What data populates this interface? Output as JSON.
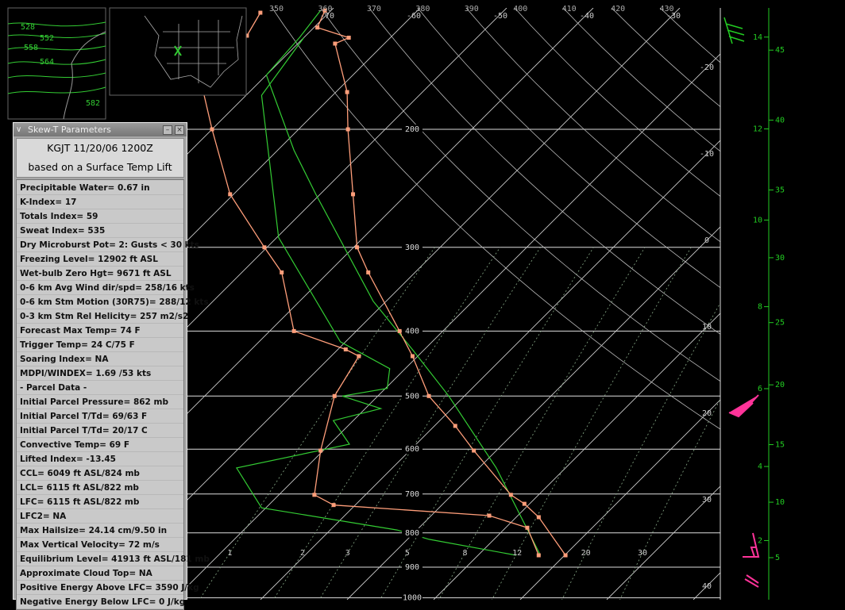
{
  "panel": {
    "title": "Skew-T Parameters",
    "station": "KGJT 11/20/06 1200Z",
    "lift": "based on a Surface Temp Lift",
    "items": [
      "Precipitable Water= 0.67 in",
      "K-Index= 17",
      "Totals Index= 59",
      "Sweat Index= 535",
      "Dry Microburst Pot= 2: Gusts < 30 kts",
      "Freezing Level= 12902 ft ASL",
      "Wet-bulb Zero Hgt= 9671 ft ASL",
      "0-6 km Avg Wind dir/spd= 258/16 kts",
      "0-6 km Stm Motion (30R75)= 288/12 kts",
      "0-3 km Stm Rel Helicity= 257 m2/s2",
      "Forecast Max Temp= 74 F",
      "Trigger Temp= 24 C/75 F",
      "Soaring Index= NA",
      "MDPI/WINDEX= 1.69 /53 kts",
      "- Parcel Data -",
      "Initial Parcel Pressure= 862 mb",
      "Initial Parcel T/Td= 69/63 F",
      "Initial Parcel T/Td= 20/17 C",
      "Convective Temp= 69 F",
      "Lifted Index= -13.45",
      "CCL= 6049 ft ASL/824 mb",
      "LCL= 6115 ft ASL/822 mb",
      "LFC= 6115 ft ASL/822 mb",
      "LFC2= NA",
      "Max Hailsize= 24.14 cm/9.50 in",
      "Max Vertical Velocity= 72 m/s",
      "Equilibrium Level= 41913 ft ASL/181 mb",
      "Approximate Cloud Top= NA",
      "Positive Energy Above LFC= 3590 J/kg",
      "Negative Energy Below LFC= 0 J/kg"
    ]
  },
  "map": {
    "contour_labels": [
      "528",
      "552",
      "558",
      "564",
      "582"
    ]
  },
  "skewt": {
    "isobars": [
      200,
      300,
      400,
      500,
      600,
      700,
      800,
      900,
      1000
    ],
    "isotherms": [
      -70,
      -60,
      -50,
      -40,
      -30,
      -20,
      -10,
      0,
      10,
      20,
      30,
      40
    ],
    "dry_adiabats": [
      350,
      360,
      370,
      380,
      390,
      400,
      410,
      420,
      430
    ],
    "mixing_ratios": [
      1,
      2,
      3,
      5,
      8,
      12,
      20,
      30
    ],
    "height_km": [
      2,
      4,
      6,
      8,
      10,
      12,
      14
    ],
    "height_kft": [
      5,
      10,
      15,
      20,
      25,
      30,
      35,
      40,
      45
    ],
    "temperature": {
      "p": [
        864,
        758,
        724,
        702,
        603,
        554,
        500,
        436,
        400,
        327,
        300,
        250,
        200,
        176,
        149,
        146,
        141,
        133
      ],
      "t": [
        20.1,
        12.6,
        9.4,
        6.8,
        -2.6,
        -7.6,
        -14.1,
        -20.6,
        -25.0,
        -35.4,
        -39.6,
        -46.2,
        -54.3,
        -58.7,
        -65.7,
        -64.8,
        -69.6,
        -70.7
      ]
    },
    "dewpoint": {
      "p": [
        864,
        786,
        754,
        727,
        702,
        603,
        500,
        436,
        426,
        400,
        327,
        300,
        250,
        200,
        176,
        149,
        145,
        134
      ],
      "t": [
        17.0,
        12.5,
        6.7,
        -12.5,
        -15.9,
        -20.3,
        -25.0,
        -26.8,
        -29.1,
        -37.2,
        -45.4,
        -50.3,
        -60.4,
        -70.0,
        -75.3,
        -77.2,
        -76.8,
        -77.9
      ]
    },
    "parcel": {
      "p": [
        864,
        640,
        500,
        426,
        361,
        250,
        215,
        166,
        146,
        133
      ],
      "t": [
        17.2,
        2.0,
        -11.8,
        -21.4,
        -31.5,
        -50.5,
        -58.1,
        -70.0,
        -70.5,
        -71.2
      ]
    },
    "wetbulb": {
      "p": [
        864,
        818,
        792,
        734,
        640,
        590,
        544,
        522,
        500,
        487,
        455,
        415,
        290,
        178,
        146
      ],
      "t": [
        14.4,
        2.5,
        -2.3,
        -20.5,
        -28.0,
        -17.7,
        -22.3,
        -18.2,
        -24.1,
        -19.8,
        -21.8,
        -30.6,
        -49.8,
        -68.2,
        -70.0
      ]
    }
  }
}
